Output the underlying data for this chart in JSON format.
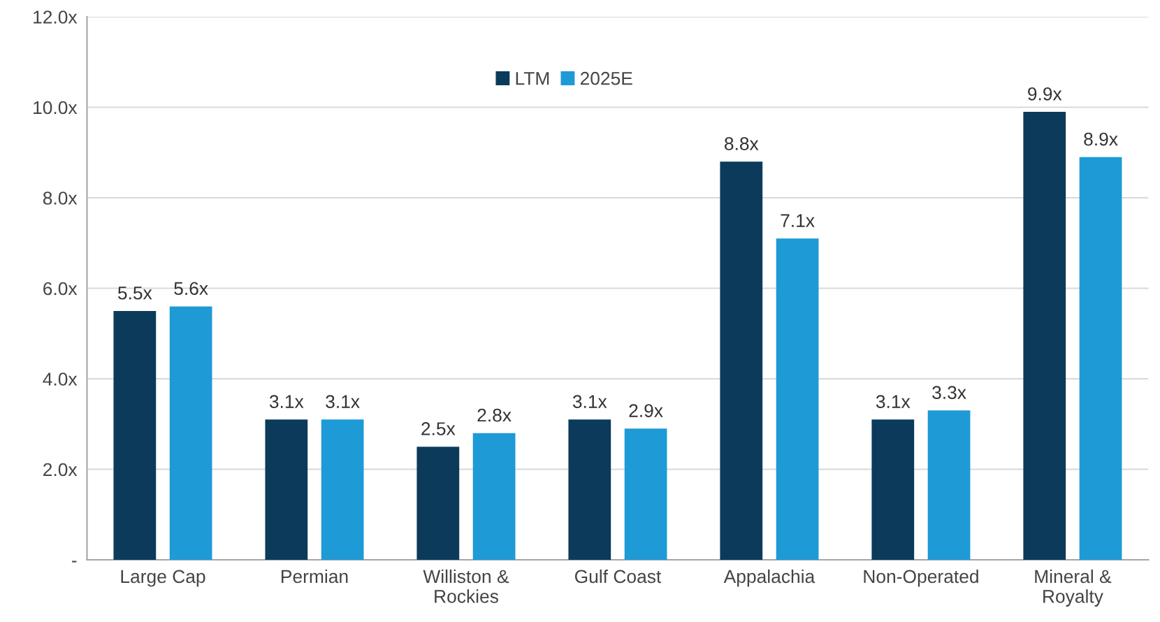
{
  "chart_data": {
    "type": "bar",
    "categories": [
      "Large Cap",
      "Permian",
      "Williston &\nRockies",
      "Gulf Coast",
      "Appalachia",
      "Non-Operated",
      "Mineral &\nRoyalty"
    ],
    "series": [
      {
        "name": "LTM",
        "color": "#0b3a5b",
        "values": [
          5.5,
          3.1,
          2.5,
          3.1,
          8.8,
          3.1,
          9.9
        ],
        "value_labels": [
          "5.5x",
          "3.1x",
          "2.5x",
          "3.1x",
          "8.8x",
          "3.1x",
          "9.9x"
        ]
      },
      {
        "name": "2025E",
        "color": "#1e9ad6",
        "values": [
          5.6,
          3.1,
          2.8,
          2.9,
          7.1,
          3.3,
          8.9
        ],
        "value_labels": [
          "5.6x",
          "3.1x",
          "2.8x",
          "2.9x",
          "7.1x",
          "3.3x",
          "8.9x"
        ]
      }
    ],
    "ylim": [
      0,
      12
    ],
    "yticks": [
      {
        "value": 0,
        "label": "-"
      },
      {
        "value": 2,
        "label": "2.0x"
      },
      {
        "value": 4,
        "label": "4.0x"
      },
      {
        "value": 6,
        "label": "6.0x"
      },
      {
        "value": 8,
        "label": "8.0x"
      },
      {
        "value": 10,
        "label": "10.0x"
      },
      {
        "value": 12,
        "label": "12.0x"
      }
    ],
    "grid": "y",
    "legend": "top"
  }
}
